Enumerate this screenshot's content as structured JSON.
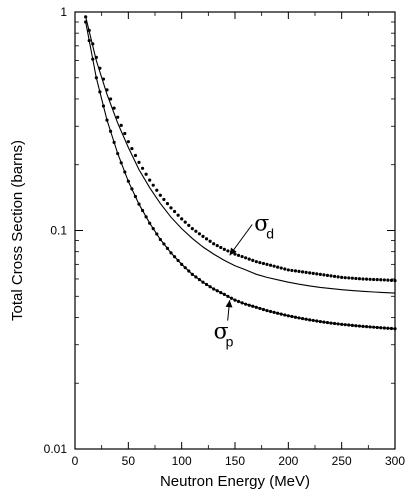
{
  "chart_data": {
    "type": "line",
    "xlabel": "Neutron Energy (MeV)",
    "ylabel": "Total Cross Section (barns)",
    "xlim": [
      0,
      300
    ],
    "ylim": [
      0.01,
      1
    ],
    "yscale": "log",
    "grid": false,
    "x_ticks": [
      0,
      50,
      100,
      150,
      200,
      250,
      300
    ],
    "x_tick_labels": [
      "0",
      "50",
      "100",
      "150",
      "200",
      "250",
      "300"
    ],
    "y_ticks": [
      0.01,
      0.1,
      1
    ],
    "y_tick_labels": [
      "0.01",
      "0.1",
      "1"
    ],
    "series": [
      {
        "style": "dotted",
        "x": [
          10,
          20,
          30,
          40,
          50,
          60,
          70,
          80,
          90,
          100,
          110,
          120,
          130,
          140,
          150,
          160,
          170,
          180,
          190,
          200,
          210,
          220,
          230,
          240,
          250,
          260,
          270,
          280,
          290,
          300
        ],
        "y": [
          0.95,
          0.62,
          0.44,
          0.33,
          0.255,
          0.205,
          0.17,
          0.145,
          0.127,
          0.113,
          0.102,
          0.094,
          0.087,
          0.082,
          0.078,
          0.075,
          0.072,
          0.07,
          0.068,
          0.066,
          0.065,
          0.064,
          0.063,
          0.062,
          0.061,
          0.0605,
          0.06,
          0.0597,
          0.0594,
          0.059
        ]
      },
      {
        "style": "solid",
        "x": [
          10,
          20,
          30,
          40,
          50,
          60,
          70,
          80,
          90,
          100,
          110,
          120,
          130,
          140,
          150,
          160,
          170,
          180,
          190,
          200,
          210,
          220,
          230,
          240,
          250,
          260,
          270,
          280,
          290,
          300
        ],
        "y": [
          0.95,
          0.6,
          0.42,
          0.31,
          0.24,
          0.19,
          0.157,
          0.133,
          0.115,
          0.102,
          0.092,
          0.084,
          0.078,
          0.073,
          0.069,
          0.066,
          0.063,
          0.061,
          0.0595,
          0.058,
          0.0568,
          0.0558,
          0.0549,
          0.0542,
          0.0536,
          0.0531,
          0.0527,
          0.0523,
          0.052,
          0.0517
        ]
      },
      {
        "style": "dotted",
        "x": [
          10,
          20,
          30,
          40,
          50,
          60,
          70,
          80,
          90,
          100,
          110,
          120,
          130,
          140,
          150,
          160,
          170,
          180,
          190,
          200,
          210,
          220,
          230,
          240,
          250,
          260,
          270,
          280,
          290,
          300
        ],
        "y": [
          0.9,
          0.5,
          0.32,
          0.225,
          0.168,
          0.132,
          0.108,
          0.091,
          0.079,
          0.07,
          0.063,
          0.058,
          0.054,
          0.051,
          0.048,
          0.046,
          0.0445,
          0.043,
          0.0418,
          0.0407,
          0.0398,
          0.039,
          0.0383,
          0.0377,
          0.0372,
          0.0368,
          0.0364,
          0.0361,
          0.0358,
          0.0355
        ]
      },
      {
        "style": "solid",
        "x": [
          10,
          20,
          30,
          40,
          50,
          60,
          70,
          80,
          90,
          100,
          110,
          120,
          130,
          140,
          150,
          160,
          170,
          180,
          190,
          200,
          210,
          220,
          230,
          240,
          250,
          260,
          270,
          280,
          290,
          300
        ],
        "y": [
          0.9,
          0.5,
          0.32,
          0.225,
          0.168,
          0.132,
          0.108,
          0.091,
          0.079,
          0.07,
          0.063,
          0.058,
          0.054,
          0.051,
          0.048,
          0.046,
          0.0445,
          0.043,
          0.0418,
          0.0407,
          0.0398,
          0.039,
          0.0383,
          0.0377,
          0.0372,
          0.0368,
          0.0364,
          0.0361,
          0.0358,
          0.0355
        ]
      }
    ],
    "annotations": [
      {
        "symbol": "σ",
        "subscript": "d",
        "x": 168,
        "y": 0.1,
        "arrow_to": [
          145,
          0.077
        ]
      },
      {
        "symbol": "σ",
        "subscript": "p",
        "x": 130,
        "y": 0.032,
        "arrow_to": [
          145,
          0.048
        ]
      }
    ]
  }
}
